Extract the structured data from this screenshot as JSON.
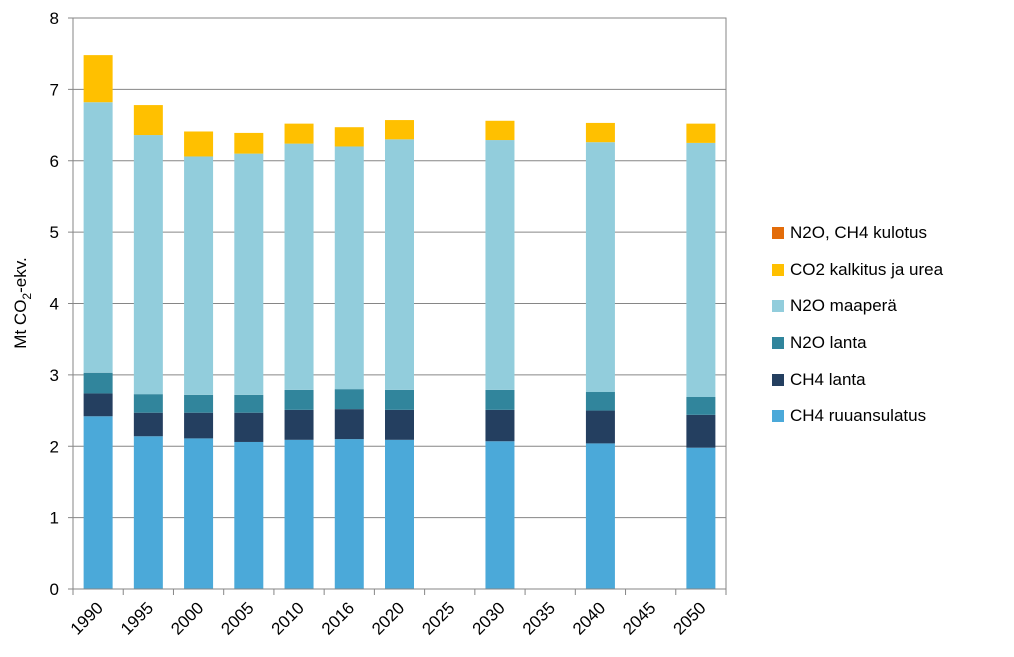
{
  "chart_data": {
    "type": "bar",
    "stacked": true,
    "categories": [
      "1990",
      "1995",
      "2000",
      "2005",
      "2010",
      "2016",
      "2020",
      "2025",
      "2030",
      "2035",
      "2040",
      "2045",
      "2050"
    ],
    "series": [
      {
        "name": "CH4 ruuansulatus",
        "color": "#4BA9D9",
        "values": [
          2.42,
          2.14,
          2.11,
          2.06,
          2.09,
          2.1,
          2.09,
          null,
          2.07,
          null,
          2.04,
          null,
          1.98
        ]
      },
      {
        "name": "CH4 lanta",
        "color": "#243F60",
        "values": [
          0.32,
          0.33,
          0.36,
          0.41,
          0.42,
          0.42,
          0.42,
          null,
          0.44,
          null,
          0.46,
          null,
          0.46
        ]
      },
      {
        "name": "N2O lanta",
        "color": "#31859C",
        "values": [
          0.29,
          0.26,
          0.25,
          0.25,
          0.28,
          0.28,
          0.28,
          null,
          0.28,
          null,
          0.26,
          null,
          0.25
        ]
      },
      {
        "name": "N2O maaperä",
        "color": "#92CDDC",
        "values": [
          3.79,
          3.63,
          3.34,
          3.38,
          3.45,
          3.4,
          3.51,
          null,
          3.5,
          null,
          3.5,
          null,
          3.56
        ]
      },
      {
        "name": "CO2 kalkitus ja urea",
        "color": "#FFC000",
        "values": [
          0.66,
          0.42,
          0.35,
          0.29,
          0.28,
          0.27,
          0.27,
          null,
          0.27,
          null,
          0.27,
          null,
          0.27
        ]
      },
      {
        "name": "N2O, CH4 kulotus",
        "color": "#E36C09",
        "values": [
          0,
          0,
          0,
          0,
          0,
          0,
          0,
          null,
          0,
          null,
          0,
          null,
          0
        ]
      }
    ],
    "ylabel": "Mt CO2-ekv.",
    "ylim": [
      0,
      8
    ],
    "yticks": [
      "0",
      "1",
      "2",
      "3",
      "4",
      "5",
      "6",
      "7",
      "8"
    ],
    "grid": true,
    "legend_position": "right",
    "legend_order": [
      "N2O, CH4 kulotus",
      "CO2 kalkitus ja urea",
      "N2O maaperä",
      "N2O lanta",
      "CH4 lanta",
      "CH4 ruuansulatus"
    ]
  }
}
